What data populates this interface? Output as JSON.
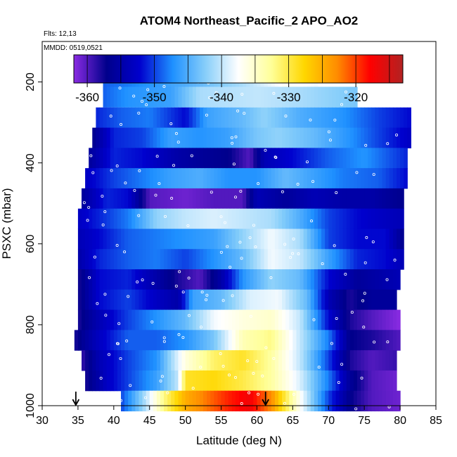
{
  "chart_data": {
    "type": "heatmap",
    "title": "ATOM4 Northeast_Pacific_2 APO_AO2",
    "subtitle_flights": "Flts: 12,13",
    "subtitle_dates": "MMDD: 0519,0521",
    "xlabel": "Latitude (deg N)",
    "ylabel": "PSXC (mbar)",
    "xlim": [
      30,
      85
    ],
    "ylim": [
      1000,
      100
    ],
    "x_ticks": [
      30,
      35,
      40,
      45,
      50,
      55,
      60,
      65,
      70,
      75,
      80,
      85
    ],
    "y_ticks": [
      200,
      400,
      600,
      800,
      1000
    ],
    "colorbar": {
      "range": [
        -362,
        -313
      ],
      "ticks": [
        -360,
        -350,
        -340,
        -330,
        -320
      ],
      "colors": [
        "#8a2be2",
        "#00008b",
        "#0000cd",
        "#1e90ff",
        "#87cefa",
        "#ffffff",
        "#ffff99",
        "#ffd700",
        "#ff8c00",
        "#ff0000",
        "#b22222"
      ]
    },
    "rows": [
      {
        "p": 200,
        "x0": 38.5,
        "x1": 68.5,
        "stops": [
          [
            38.5,
            -349
          ],
          [
            42,
            -348
          ],
          [
            50,
            -345
          ],
          [
            58,
            -341
          ],
          [
            64,
            -337
          ],
          [
            68.5,
            -338
          ]
        ]
      },
      {
        "p": 237,
        "x0": 38.5,
        "x1": 74,
        "stops": [
          [
            38.5,
            -349
          ],
          [
            42,
            -347
          ],
          [
            48,
            -346
          ],
          [
            52,
            -341
          ],
          [
            60,
            -340
          ],
          [
            66,
            -341
          ],
          [
            74,
            -343
          ]
        ]
      },
      {
        "p": 288,
        "x0": 37.5,
        "x1": 81.5,
        "stops": [
          [
            37.5,
            -351
          ],
          [
            41,
            -349
          ],
          [
            45,
            -348
          ],
          [
            50,
            -352
          ],
          [
            53,
            -346
          ],
          [
            58,
            -344
          ],
          [
            61,
            -342
          ],
          [
            66,
            -345
          ],
          [
            72,
            -347
          ],
          [
            77,
            -350
          ],
          [
            81.5,
            -352
          ]
        ]
      },
      {
        "p": 338,
        "x0": 37,
        "x1": 81.5,
        "stops": [
          [
            37,
            -357
          ],
          [
            40,
            -351
          ],
          [
            44,
            -350
          ],
          [
            48,
            -346
          ],
          [
            52,
            -347
          ],
          [
            56,
            -346
          ],
          [
            60,
            -343
          ],
          [
            63,
            -342
          ],
          [
            68,
            -344
          ],
          [
            73,
            -347
          ],
          [
            77,
            -350
          ],
          [
            81.5,
            -353
          ]
        ]
      },
      {
        "p": 388,
        "x0": 36.5,
        "x1": 81,
        "stops": [
          [
            36.5,
            -356
          ],
          [
            40,
            -351
          ],
          [
            44,
            -352
          ],
          [
            49,
            -355
          ],
          [
            52,
            -356
          ],
          [
            56,
            -357
          ],
          [
            59,
            -360
          ],
          [
            61,
            -354
          ],
          [
            65,
            -352
          ],
          [
            70,
            -349
          ],
          [
            75,
            -347
          ],
          [
            81,
            -351
          ]
        ]
      },
      {
        "p": 438,
        "x0": 36,
        "x1": 81,
        "stops": [
          [
            36,
            -353
          ],
          [
            40,
            -350
          ],
          [
            44,
            -348
          ],
          [
            48,
            -346
          ],
          [
            52,
            -345
          ],
          [
            56,
            -347
          ],
          [
            60,
            -347
          ],
          [
            64,
            -344
          ],
          [
            68,
            -346
          ],
          [
            72,
            -348
          ],
          [
            77,
            -349
          ],
          [
            81,
            -352
          ]
        ]
      },
      {
        "p": 488,
        "x0": 35.5,
        "x1": 80.5,
        "stops": [
          [
            35.5,
            -356
          ],
          [
            39,
            -351
          ],
          [
            42,
            -352
          ],
          [
            45,
            -360
          ],
          [
            50,
            -361
          ],
          [
            54,
            -360
          ],
          [
            58,
            -360
          ],
          [
            60,
            -354
          ],
          [
            64,
            -356
          ],
          [
            68,
            -354
          ],
          [
            72,
            -355
          ],
          [
            76,
            -355
          ],
          [
            80.5,
            -357
          ]
        ]
      },
      {
        "p": 538,
        "x0": 35,
        "x1": 80.5,
        "stops": [
          [
            35,
            -353
          ],
          [
            38,
            -351
          ],
          [
            42,
            -348
          ],
          [
            46,
            -342
          ],
          [
            50,
            -340
          ],
          [
            54,
            -339
          ],
          [
            58,
            -340
          ],
          [
            62,
            -341
          ],
          [
            66,
            -345
          ],
          [
            70,
            -350
          ],
          [
            74,
            -352
          ],
          [
            80.5,
            -354
          ]
        ]
      },
      {
        "p": 588,
        "x0": 35,
        "x1": 80.5,
        "stops": [
          [
            35,
            -354
          ],
          [
            38,
            -352
          ],
          [
            42,
            -349
          ],
          [
            46,
            -348
          ],
          [
            50,
            -347
          ],
          [
            54,
            -346
          ],
          [
            58,
            -342
          ],
          [
            62,
            -338
          ],
          [
            66,
            -341
          ],
          [
            70,
            -350
          ],
          [
            74,
            -352
          ],
          [
            78,
            -352
          ],
          [
            80.5,
            -357
          ]
        ]
      },
      {
        "p": 638,
        "x0": 35,
        "x1": 80.5,
        "stops": [
          [
            35,
            -355
          ],
          [
            38,
            -351
          ],
          [
            42,
            -349
          ],
          [
            46,
            -348
          ],
          [
            50,
            -350
          ],
          [
            54,
            -347
          ],
          [
            58,
            -344
          ],
          [
            62,
            -338
          ],
          [
            66,
            -340
          ],
          [
            70,
            -346
          ],
          [
            74,
            -351
          ],
          [
            78,
            -352
          ],
          [
            80.5,
            -354
          ]
        ]
      },
      {
        "p": 688,
        "x0": 35,
        "x1": 80,
        "stops": [
          [
            35,
            -358
          ],
          [
            38,
            -352
          ],
          [
            42,
            -351
          ],
          [
            46,
            -355
          ],
          [
            49,
            -358
          ],
          [
            52,
            -360
          ],
          [
            55,
            -355
          ],
          [
            58,
            -347
          ],
          [
            62,
            -342
          ],
          [
            66,
            -344
          ],
          [
            70,
            -352
          ],
          [
            74,
            -356
          ],
          [
            80,
            -354
          ]
        ]
      },
      {
        "p": 738,
        "x0": 35,
        "x1": 79.5,
        "stops": [
          [
            35,
            -358
          ],
          [
            38,
            -352
          ],
          [
            42,
            -350
          ],
          [
            46,
            -353
          ],
          [
            49,
            -355
          ],
          [
            51,
            -346
          ],
          [
            55,
            -344
          ],
          [
            59,
            -339
          ],
          [
            63,
            -338
          ],
          [
            67,
            -344
          ],
          [
            70,
            -354
          ],
          [
            73,
            -358
          ],
          [
            76,
            -356
          ],
          [
            79.5,
            -356
          ]
        ]
      },
      {
        "p": 788,
        "x0": 35,
        "x1": 80,
        "stops": [
          [
            35,
            -358
          ],
          [
            38,
            -354
          ],
          [
            42,
            -350
          ],
          [
            46,
            -347
          ],
          [
            50,
            -344
          ],
          [
            54,
            -338
          ],
          [
            58,
            -336
          ],
          [
            62,
            -335
          ],
          [
            66,
            -340
          ],
          [
            70,
            -352
          ],
          [
            73,
            -358
          ],
          [
            76,
            -360
          ],
          [
            80,
            -362
          ]
        ]
      },
      {
        "p": 838,
        "x0": 34.5,
        "x1": 80,
        "stops": [
          [
            34.5,
            -358
          ],
          [
            38,
            -353
          ],
          [
            42,
            -349
          ],
          [
            46,
            -349
          ],
          [
            50,
            -347
          ],
          [
            54,
            -343
          ],
          [
            58,
            -334
          ],
          [
            62,
            -332
          ],
          [
            66,
            -340
          ],
          [
            70,
            -348
          ],
          [
            73,
            -357
          ],
          [
            76,
            -358
          ],
          [
            80,
            -360
          ]
        ]
      },
      {
        "p": 888,
        "x0": 35.5,
        "x1": 79.5,
        "stops": [
          [
            35.5,
            -359
          ],
          [
            38,
            -354
          ],
          [
            42,
            -350
          ],
          [
            46,
            -347
          ],
          [
            50,
            -336
          ],
          [
            54,
            -331
          ],
          [
            58,
            -329
          ],
          [
            62,
            -333
          ],
          [
            66,
            -340
          ],
          [
            70,
            -350
          ],
          [
            73,
            -358
          ],
          [
            76,
            -360
          ],
          [
            79.5,
            -359
          ]
        ]
      },
      {
        "p": 938,
        "x0": 36,
        "x1": 79.5,
        "stops": [
          [
            36,
            -358
          ],
          [
            39,
            -353
          ],
          [
            42,
            -350
          ],
          [
            46,
            -346
          ],
          [
            49,
            -340
          ],
          [
            50,
            -329
          ],
          [
            54,
            -328
          ],
          [
            58,
            -330
          ],
          [
            62,
            -333
          ],
          [
            66,
            -339
          ],
          [
            70,
            -348
          ],
          [
            73,
            -356
          ],
          [
            76,
            -360
          ],
          [
            79.5,
            -361
          ]
        ]
      },
      {
        "p": 988,
        "x0": 41,
        "x1": 80,
        "stops": [
          [
            41,
            -350
          ],
          [
            44,
            -342
          ],
          [
            47,
            -332
          ],
          [
            50,
            -325
          ],
          [
            53,
            -322
          ],
          [
            56,
            -319
          ],
          [
            59,
            -317
          ],
          [
            62,
            -323
          ],
          [
            66,
            -337
          ],
          [
            70,
            -350
          ],
          [
            73,
            -357
          ],
          [
            76,
            -360
          ],
          [
            80,
            -361
          ]
        ]
      }
    ],
    "arrows_latitude": [
      34.7,
      61.2
    ]
  }
}
